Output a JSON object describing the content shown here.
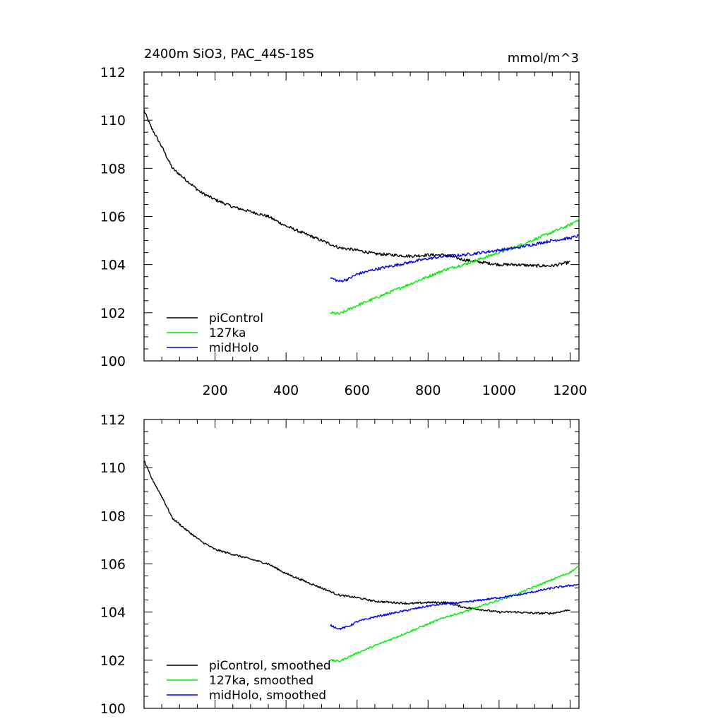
{
  "chart_data": [
    {
      "type": "line",
      "title": "2400m SiO3, PAC_44S-18S",
      "units": "mmol/m^3",
      "xlim": [
        0,
        1225
      ],
      "ylim": [
        100,
        112
      ],
      "xticks": [
        200,
        400,
        600,
        800,
        1000,
        1200
      ],
      "xtick_labels": [
        "200",
        "400",
        "600",
        "800",
        "1000",
        "1200"
      ],
      "yticks": [
        100,
        102,
        104,
        106,
        108,
        110,
        112
      ],
      "ytick_labels": [
        "100",
        "102",
        "104",
        "106",
        "108",
        "110",
        "112"
      ],
      "legend_position": "bottom-left",
      "series": [
        {
          "name": "piControl",
          "color": "#000000",
          "x": [
            0,
            20,
            50,
            80,
            120,
            160,
            200,
            250,
            300,
            350,
            400,
            450,
            500,
            550,
            600,
            650,
            700,
            750,
            800,
            850,
            900,
            950,
            1000,
            1050,
            1100,
            1150,
            1200
          ],
          "y": [
            110.4,
            109.7,
            108.9,
            108.0,
            107.5,
            107.0,
            106.7,
            106.4,
            106.2,
            106.0,
            105.6,
            105.3,
            105.0,
            104.7,
            104.6,
            104.45,
            104.4,
            104.35,
            104.4,
            104.4,
            104.2,
            104.1,
            104.0,
            104.0,
            103.95,
            103.95,
            104.1
          ]
        },
        {
          "name": "127ka",
          "color": "#00ee00",
          "x": [
            525,
            550,
            600,
            650,
            700,
            750,
            800,
            850,
            900,
            950,
            1000,
            1050,
            1100,
            1150,
            1200,
            1225
          ],
          "y": [
            102.0,
            101.95,
            102.3,
            102.6,
            102.9,
            103.2,
            103.5,
            103.8,
            104.0,
            104.25,
            104.5,
            104.75,
            105.05,
            105.35,
            105.65,
            105.9
          ]
        },
        {
          "name": "midHolo",
          "color": "#0000ee",
          "x": [
            525,
            550,
            575,
            600,
            650,
            700,
            750,
            800,
            850,
            900,
            950,
            1000,
            1050,
            1100,
            1150,
            1200,
            1225
          ],
          "y": [
            103.45,
            103.3,
            103.4,
            103.6,
            103.8,
            103.95,
            104.1,
            104.25,
            104.35,
            104.4,
            104.5,
            104.6,
            104.7,
            104.85,
            105.0,
            105.1,
            105.2
          ]
        }
      ]
    },
    {
      "type": "line",
      "title": "",
      "units": "",
      "xlim": [
        0,
        1225
      ],
      "ylim": [
        100,
        112
      ],
      "xticks": [
        200,
        400,
        600,
        800,
        1000,
        1200
      ],
      "xtick_labels": [],
      "yticks": [
        100,
        102,
        104,
        106,
        108,
        110,
        112
      ],
      "ytick_labels": [
        "100",
        "102",
        "104",
        "106",
        "108",
        "110",
        "112"
      ],
      "legend_position": "bottom-left",
      "series": [
        {
          "name": "piControl, smoothed",
          "color": "#000000",
          "x": [
            0,
            20,
            50,
            80,
            120,
            160,
            200,
            250,
            300,
            350,
            400,
            450,
            500,
            550,
            600,
            650,
            700,
            750,
            800,
            850,
            900,
            950,
            1000,
            1050,
            1100,
            1150,
            1200
          ],
          "y": [
            110.3,
            109.6,
            108.8,
            107.9,
            107.4,
            106.95,
            106.6,
            106.4,
            106.2,
            106.0,
            105.6,
            105.3,
            105.0,
            104.7,
            104.6,
            104.45,
            104.4,
            104.35,
            104.4,
            104.4,
            104.2,
            104.1,
            104.0,
            104.0,
            103.95,
            103.95,
            104.1
          ]
        },
        {
          "name": "127ka, smoothed",
          "color": "#00ee00",
          "x": [
            525,
            550,
            600,
            650,
            700,
            750,
            800,
            850,
            900,
            950,
            1000,
            1050,
            1100,
            1150,
            1200,
            1225
          ],
          "y": [
            102.0,
            101.95,
            102.3,
            102.6,
            102.9,
            103.2,
            103.5,
            103.8,
            104.0,
            104.25,
            104.5,
            104.75,
            105.05,
            105.35,
            105.65,
            105.9
          ]
        },
        {
          "name": "midHolo, smoothed",
          "color": "#0000ee",
          "x": [
            525,
            550,
            575,
            600,
            650,
            700,
            750,
            800,
            850,
            900,
            950,
            1000,
            1050,
            1100,
            1150,
            1200,
            1225
          ],
          "y": [
            103.45,
            103.3,
            103.4,
            103.6,
            103.8,
            103.95,
            104.1,
            104.25,
            104.35,
            104.4,
            104.5,
            104.6,
            104.7,
            104.85,
            105.0,
            105.1,
            105.15
          ]
        }
      ]
    }
  ]
}
